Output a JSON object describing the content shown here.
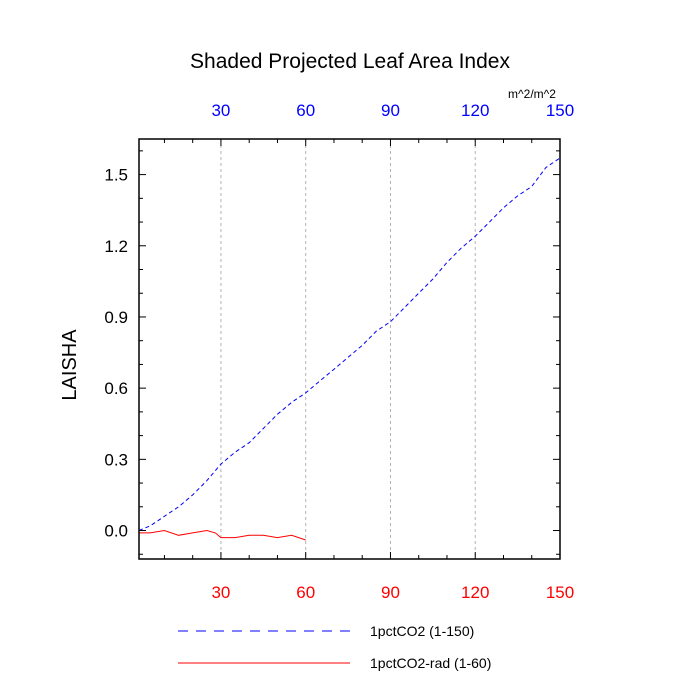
{
  "chart_data": {
    "type": "line",
    "title": "Shaded Projected Leaf Area Index",
    "ylabel": "LAISHA",
    "units": "m^2/m^2",
    "xlim": [
      1,
      150
    ],
    "ylim": [
      -0.12,
      1.65
    ],
    "x_ticks": [
      30,
      60,
      90,
      120,
      150
    ],
    "y_ticks": [
      0.0,
      0.3,
      0.6,
      0.9,
      1.2,
      1.5
    ],
    "y_tick_labels": [
      "0.0",
      "0.3",
      "0.6",
      "0.9",
      "1.2",
      "1.5"
    ],
    "grid": "vertical dashed at x ticks",
    "series": [
      {
        "name": "1pctCO2 (1-150)",
        "color": "#0000ff",
        "style": "dashed",
        "x": [
          1,
          5,
          10,
          15,
          20,
          25,
          30,
          35,
          40,
          45,
          50,
          55,
          60,
          65,
          70,
          75,
          80,
          85,
          90,
          95,
          100,
          105,
          110,
          115,
          120,
          125,
          130,
          135,
          140,
          145,
          150
        ],
        "values": [
          0.0,
          0.02,
          0.06,
          0.1,
          0.15,
          0.21,
          0.28,
          0.33,
          0.37,
          0.43,
          0.49,
          0.54,
          0.58,
          0.63,
          0.68,
          0.73,
          0.78,
          0.84,
          0.88,
          0.94,
          1.0,
          1.06,
          1.13,
          1.19,
          1.24,
          1.3,
          1.36,
          1.41,
          1.45,
          1.53,
          1.57
        ]
      },
      {
        "name": "1pctCO2-rad (1-60)",
        "color": "#ff0000",
        "style": "solid",
        "x": [
          1,
          5,
          10,
          15,
          20,
          25,
          28,
          30,
          35,
          40,
          45,
          50,
          55,
          60
        ],
        "values": [
          -0.01,
          -0.01,
          0.0,
          -0.02,
          -0.01,
          0.0,
          -0.01,
          -0.03,
          -0.03,
          -0.02,
          -0.02,
          -0.03,
          -0.02,
          -0.04
        ]
      }
    ],
    "x_ticks_top": [
      30,
      60,
      90,
      120,
      150
    ],
    "bottom_tick_color": "#ff0000",
    "top_tick_color": "#0000ff",
    "legend_position": "bottom"
  }
}
